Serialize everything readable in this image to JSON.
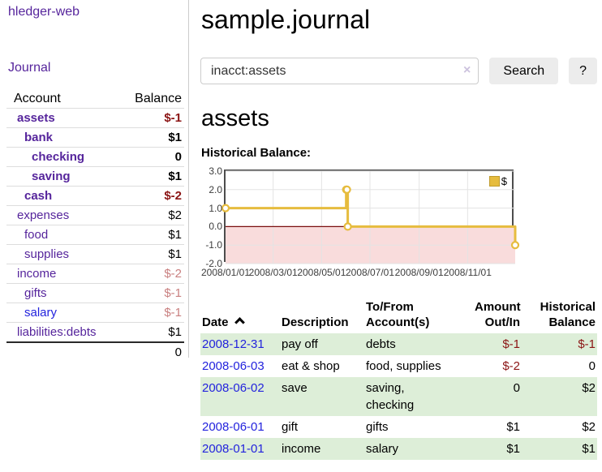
{
  "app": {
    "title": "hledger-web"
  },
  "sidebar": {
    "journal_link": "Journal",
    "accounts": {
      "account_header": "Account",
      "balance_header": "Balance",
      "rows": [
        {
          "name": "assets",
          "balance": "$-1",
          "level": 0,
          "bold": true,
          "balance_tone": "negative"
        },
        {
          "name": "bank",
          "balance": "$1",
          "level": 1,
          "bold": true,
          "balance_tone": "normal"
        },
        {
          "name": "checking",
          "balance": "0",
          "level": 2,
          "bold": true,
          "balance_tone": "normal"
        },
        {
          "name": "saving",
          "balance": "$1",
          "level": 2,
          "bold": true,
          "balance_tone": "normal"
        },
        {
          "name": "cash",
          "balance": "$-2",
          "level": 1,
          "bold": true,
          "balance_tone": "negative"
        },
        {
          "name": "expenses",
          "balance": "$2",
          "level": 0,
          "bold": false,
          "balance_tone": "normal"
        },
        {
          "name": "food",
          "balance": "$1",
          "level": 1,
          "bold": false,
          "balance_tone": "normal"
        },
        {
          "name": "supplies",
          "balance": "$1",
          "level": 1,
          "bold": false,
          "balance_tone": "normal"
        },
        {
          "name": "income",
          "balance": "$-2",
          "level": 0,
          "bold": false,
          "balance_tone": "negative-light"
        },
        {
          "name": "gifts",
          "balance": "$-1",
          "level": 1,
          "bold": false,
          "balance_tone": "negative-light"
        },
        {
          "name": "salary",
          "balance": "$-1",
          "level": 1,
          "bold": false,
          "balance_tone": "negative-light",
          "link_tone": "blue"
        },
        {
          "name": "liabilities:debts",
          "balance": "$1",
          "level": 0,
          "bold": false,
          "balance_tone": "normal"
        }
      ],
      "total": "0"
    }
  },
  "main": {
    "title": "sample.journal",
    "search": {
      "value": "inacct:assets",
      "clear_icon": "×",
      "button_label": "Search",
      "help_label": "?"
    },
    "account_heading": "assets",
    "chart_heading": "Historical Balance:"
  },
  "chart_data": {
    "type": "line",
    "title": "Historical Balance",
    "step": true,
    "x": [
      "2008-01-01",
      "2008-06-01",
      "2008-06-02",
      "2008-06-03",
      "2008-12-31"
    ],
    "values": [
      1,
      2,
      2,
      0,
      -1
    ],
    "series_name": "$",
    "xlim": [
      "2008-01-01",
      "2008-12-31"
    ],
    "ylim": [
      -2,
      3
    ],
    "yticks": {
      "values": [
        3,
        2,
        1,
        0,
        -1,
        -2
      ],
      "labels": [
        "3.0",
        "2.0",
        "1.0",
        "0.0",
        "-1.0",
        "-2.0"
      ]
    },
    "xticks": {
      "dates": [
        "2008-01-01",
        "2008-03-01",
        "2008-05-01",
        "2008-07-01",
        "2008-09-01",
        "2008-11-01"
      ],
      "labels": [
        "2008/01/01",
        "2008/03/01",
        "2008/05/01",
        "2008/07/01",
        "2008/09/01",
        "2008/11/01"
      ]
    },
    "legend": {
      "label": "$",
      "position": "top-right"
    },
    "grid": true,
    "colors": {
      "line": "#e6bc3e",
      "marker_fill": "#ffffff",
      "negative_fill": "#f9dcdc",
      "zero_line": "#7a0e0e",
      "grid": "#e3e3e3",
      "border": "#4d4d4d"
    }
  },
  "register": {
    "headers": [
      "Date",
      "Description",
      "To/From Account(s)",
      "Amount Out/In",
      "Historical Balance"
    ],
    "rows": [
      {
        "date": "2008-12-31",
        "description": "pay off",
        "accounts": "debts",
        "amount": "$-1",
        "amount_tone": "negative",
        "balance": "$-1",
        "balance_tone": "negative"
      },
      {
        "date": "2008-06-03",
        "description": "eat & shop",
        "accounts": "food, supplies",
        "amount": "$-2",
        "amount_tone": "negative",
        "balance": "0",
        "balance_tone": "normal"
      },
      {
        "date": "2008-06-02",
        "description": "save",
        "accounts": "saving, checking",
        "amount": "0",
        "amount_tone": "normal",
        "balance": "$2",
        "balance_tone": "normal"
      },
      {
        "date": "2008-06-01",
        "description": "gift",
        "accounts": "gifts",
        "amount": "$1",
        "amount_tone": "normal",
        "balance": "$2",
        "balance_tone": "normal"
      },
      {
        "date": "2008-01-01",
        "description": "income",
        "accounts": "salary",
        "amount": "$1",
        "amount_tone": "normal",
        "balance": "$1",
        "balance_tone": "normal"
      }
    ]
  }
}
